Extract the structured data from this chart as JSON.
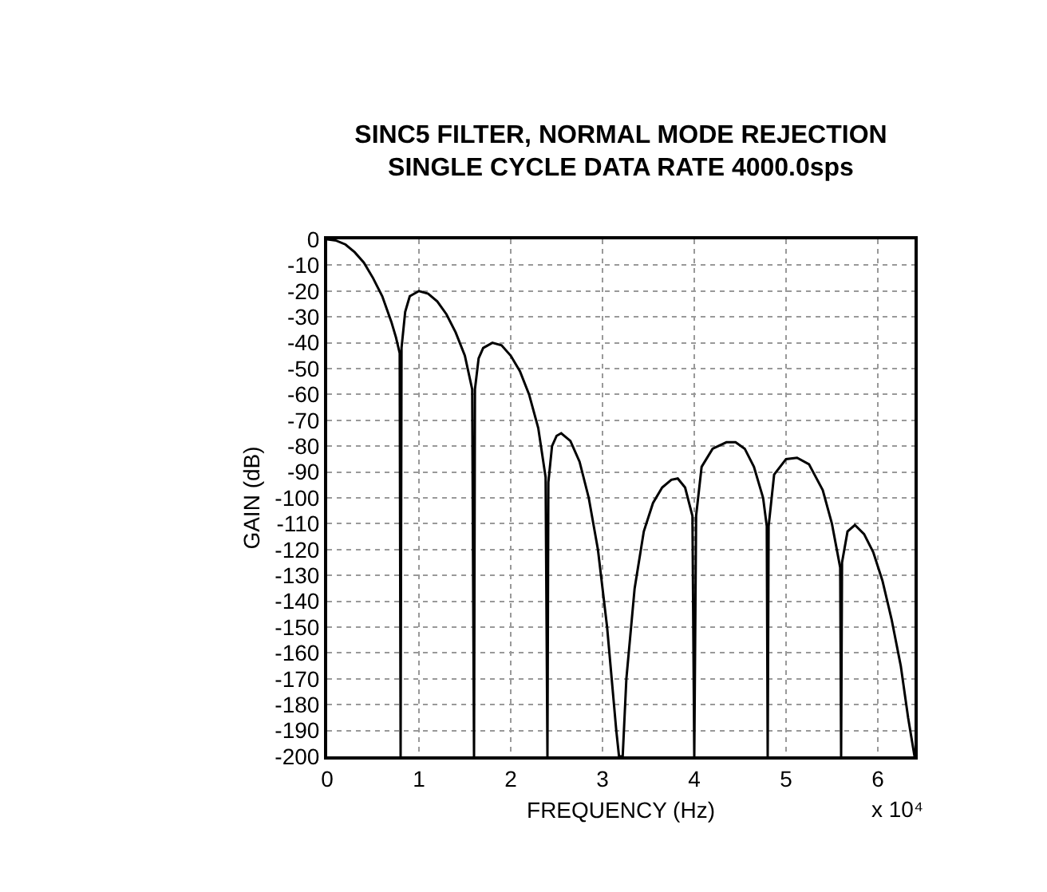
{
  "chart_data": {
    "type": "line",
    "title": "SINC5 FILTER, NORMAL MODE REJECTION\nSINGLE CYCLE DATA RATE 4000.0sps",
    "xlabel": "FREQUENCY (Hz)",
    "ylabel": "GAIN (dB)",
    "annotations": [
      "x 10⁴"
    ],
    "x": [
      0,
      0.1,
      0.2,
      0.3,
      0.4,
      0.5,
      0.6,
      0.7,
      0.75,
      0.79,
      0.8,
      0.81,
      0.85,
      0.9,
      1.0,
      1.1,
      1.2,
      1.3,
      1.4,
      1.5,
      1.58,
      1.6,
      1.61,
      1.65,
      1.7,
      1.8,
      1.9,
      2.0,
      2.1,
      2.2,
      2.3,
      2.38,
      2.4,
      2.41,
      2.45,
      2.5,
      2.55,
      2.65,
      2.75,
      2.85,
      2.95,
      3.05,
      3.15,
      3.18,
      3.22,
      3.26,
      3.35,
      3.45,
      3.55,
      3.65,
      3.75,
      3.82,
      3.9,
      3.98,
      4.0,
      4.02,
      4.08,
      4.2,
      4.35,
      4.45,
      4.55,
      4.65,
      4.75,
      4.79,
      4.8,
      4.81,
      4.87,
      5.0,
      5.12,
      5.25,
      5.4,
      5.5,
      5.59,
      5.6,
      5.61,
      5.67,
      5.75,
      5.85,
      5.95,
      6.05,
      6.15,
      6.25,
      6.33,
      6.4
    ],
    "series": [
      {
        "color": "#000000",
        "values": [
          0,
          -0.5,
          -2,
          -5,
          -9,
          -15,
          -22,
          -32,
          -38,
          -44,
          -200,
          -42,
          -28,
          -22,
          -20,
          -21,
          -24,
          -29,
          -36,
          -45,
          -58,
          -200,
          -58,
          -46,
          -42,
          -40,
          -41,
          -45,
          -51,
          -60,
          -73,
          -92,
          -200,
          -94,
          -80,
          -76,
          -75,
          -78,
          -86,
          -100,
          -120,
          -150,
          -190,
          -200,
          -200,
          -170,
          -135,
          -113,
          -102,
          -96,
          -93,
          -92.5,
          -96,
          -107,
          -200,
          -107,
          -88,
          -81,
          -78.5,
          -78.5,
          -81,
          -88,
          -100,
          -111,
          -200,
          -111,
          -91,
          -85,
          -84.5,
          -87,
          -97,
          -110,
          -127,
          -200,
          -125,
          -113,
          -110.5,
          -114,
          -121,
          -132,
          -147,
          -165,
          -185,
          -200
        ]
      }
    ],
    "xlim": [
      0,
      6.4
    ],
    "xticks": [
      0,
      1,
      2,
      3,
      4,
      5,
      6
    ],
    "ylim": [
      -200,
      0
    ],
    "yticks": [
      0,
      -10,
      -20,
      -30,
      -40,
      -50,
      -60,
      -70,
      -80,
      -90,
      -100,
      -110,
      -120,
      -130,
      -140,
      -150,
      -160,
      -170,
      -180,
      -190,
      -200
    ],
    "grid": true,
    "marker": "none",
    "line_style": "solid"
  }
}
